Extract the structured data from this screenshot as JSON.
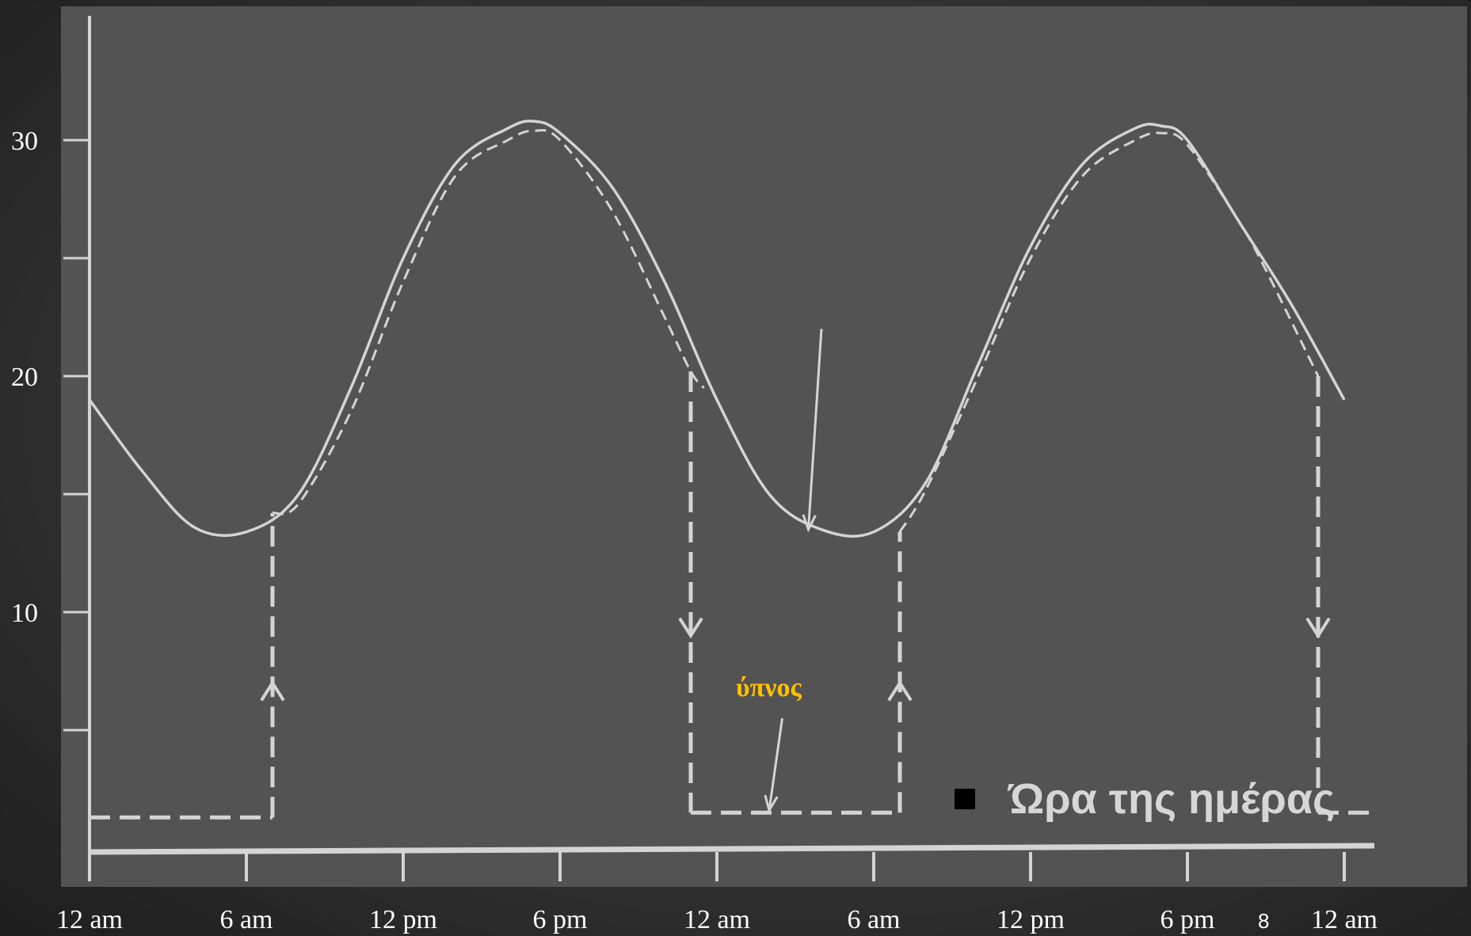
{
  "chart_data": {
    "type": "line",
    "ylim": [
      0,
      35
    ],
    "yticks": [
      "10",
      "20",
      "30"
    ],
    "xticks": [
      "12 am",
      "6 am",
      "12 pm",
      "6 pm",
      "12 am",
      "6 am",
      "12 pm",
      "6 pm",
      "12 am"
    ],
    "xlim": [
      0,
      48
    ],
    "series": [
      {
        "style": "solid",
        "x": [
          0,
          2,
          4,
          6,
          8,
          10,
          12,
          14,
          16,
          17,
          18,
          20,
          22,
          24,
          26,
          28,
          30,
          32,
          34,
          36,
          38,
          40,
          41,
          42,
          44,
          46,
          48
        ],
        "y": [
          19.0,
          16.0,
          13.6,
          13.4,
          15.0,
          19.5,
          25.0,
          29.0,
          30.5,
          30.8,
          30.3,
          28.0,
          24.0,
          19.0,
          15.0,
          13.5,
          13.4,
          15.5,
          20.5,
          25.5,
          29.0,
          30.5,
          30.6,
          30.0,
          26.5,
          23.0,
          19.0
        ]
      },
      {
        "style": "dashed",
        "x": [
          7,
          8,
          10,
          12,
          14,
          16,
          17,
          18,
          20,
          22,
          23,
          23.5
        ],
        "y": [
          14.2,
          14.6,
          18.5,
          24.0,
          28.5,
          30.0,
          30.4,
          30.0,
          27.0,
          22.5,
          20.2,
          19.5
        ],
        "x2": [
          31,
          32,
          34,
          36,
          38,
          40,
          41,
          42,
          44,
          45,
          47
        ],
        "y2": [
          13.4,
          15.2,
          20.0,
          25.0,
          28.5,
          30.0,
          30.3,
          29.8,
          26.5,
          24.5,
          20.0
        ]
      }
    ],
    "step": {
      "x": [
        0,
        7,
        7,
        23,
        23,
        31,
        31,
        47,
        47,
        49
      ],
      "y": [
        1.3,
        1.3,
        14.2,
        20.2,
        1.5,
        1.5,
        13.4,
        20.0,
        1.5,
        1.5
      ]
    },
    "annotations": {
      "sleep_label": "ύπνος",
      "min_arrow": {
        "from": [
          28,
          22
        ],
        "to": [
          27.5,
          13.5
        ]
      },
      "sleep_arrow": {
        "from": [
          26.5,
          5.5
        ],
        "to": [
          26,
          1.6
        ]
      }
    },
    "legend": {
      "label": "Ώρα της ημέρας",
      "placement": "bottom-right"
    }
  },
  "page_number": "8",
  "colors": {
    "curve": "#d4d4d4",
    "panel": "#535353",
    "sleep_label": "#ffc000",
    "text": "#ffffff"
  }
}
